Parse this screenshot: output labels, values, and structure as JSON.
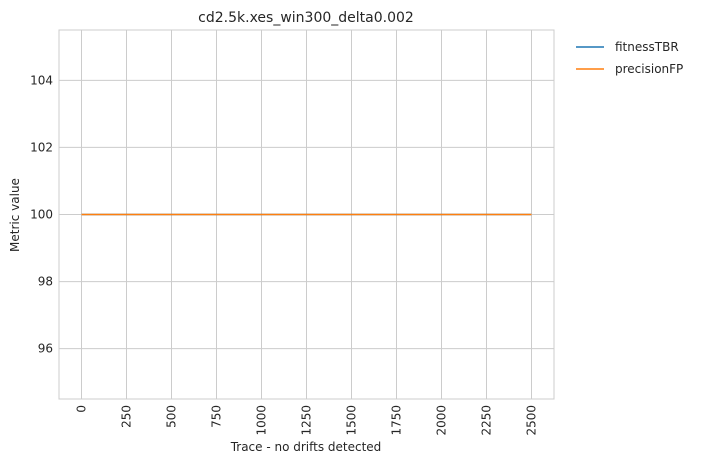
{
  "chart_data": {
    "type": "line",
    "title": "cd2.5k.xes_win300_delta0.002",
    "xlabel": "Trace - no drifts detected",
    "ylabel": "Metric value",
    "xlim": [
      -125,
      2625
    ],
    "ylim": [
      94.5,
      105.5
    ],
    "x_ticks": [
      0,
      250,
      500,
      750,
      1000,
      1250,
      1500,
      1750,
      2000,
      2250,
      2500
    ],
    "y_ticks": [
      96,
      98,
      100,
      102,
      104
    ],
    "grid": true,
    "legend_position": "outside-top-right",
    "series": [
      {
        "name": "fitnessTBR",
        "color": "#1f77b4",
        "x": [
          0,
          2500
        ],
        "y": [
          100,
          100
        ]
      },
      {
        "name": "precisionFP",
        "color": "#ff7f0e",
        "x": [
          0,
          2500
        ],
        "y": [
          100,
          100
        ]
      }
    ]
  }
}
